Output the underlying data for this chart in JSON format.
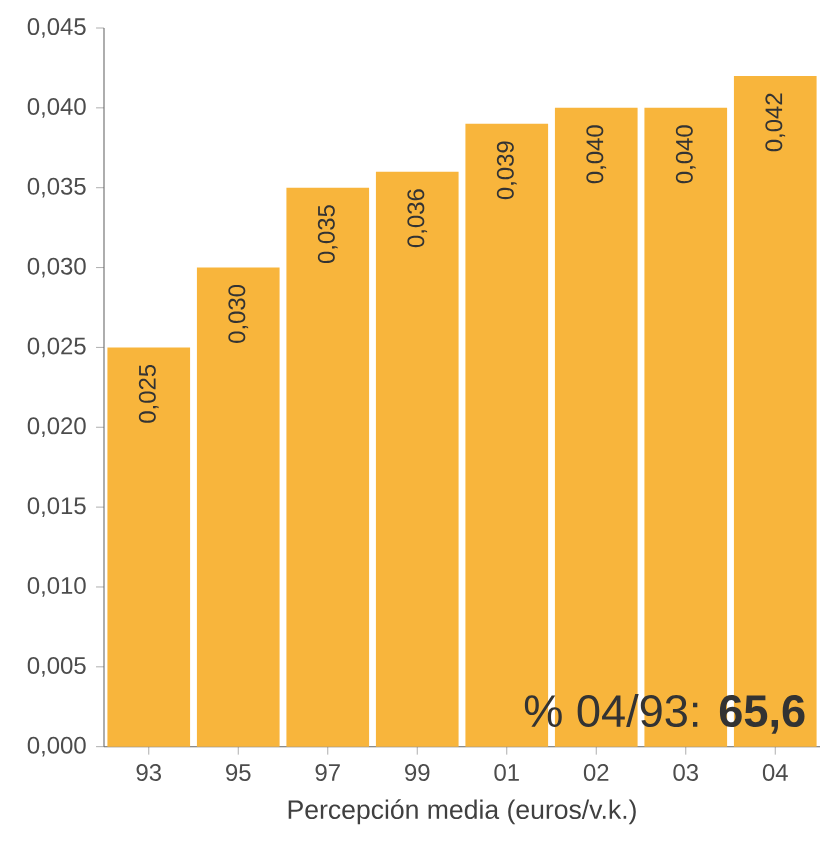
{
  "chart_data": {
    "type": "bar",
    "xlabel": "Percepción media (euros/v.k.)",
    "categories": [
      "93",
      "95",
      "97",
      "99",
      "01",
      "02",
      "03",
      "04"
    ],
    "values": [
      0.025,
      0.03,
      0.035,
      0.036,
      0.039,
      0.04,
      0.04,
      0.042
    ],
    "value_labels": [
      "0,025",
      "0,030",
      "0,035",
      "0,036",
      "0,039",
      "0,040",
      "0,040",
      "0,042"
    ],
    "color": "#f8b53c",
    "ylim": [
      0,
      0.045
    ],
    "yticks": [
      {
        "value": 0,
        "label": "0,000"
      },
      {
        "value": 0.005,
        "label": "0,005"
      },
      {
        "value": 0.01,
        "label": "0,010"
      },
      {
        "value": 0.015,
        "label": "0,015"
      },
      {
        "value": 0.02,
        "label": "0,020"
      },
      {
        "value": 0.025,
        "label": "0,025"
      },
      {
        "value": 0.03,
        "label": "0,030"
      },
      {
        "value": 0.035,
        "label": "0,035"
      },
      {
        "value": 0.04,
        "label": "0,040"
      },
      {
        "value": 0.045,
        "label": "0,045"
      }
    ],
    "grid": false,
    "annotations": [
      "% 04/93: **65,6**"
    ]
  }
}
